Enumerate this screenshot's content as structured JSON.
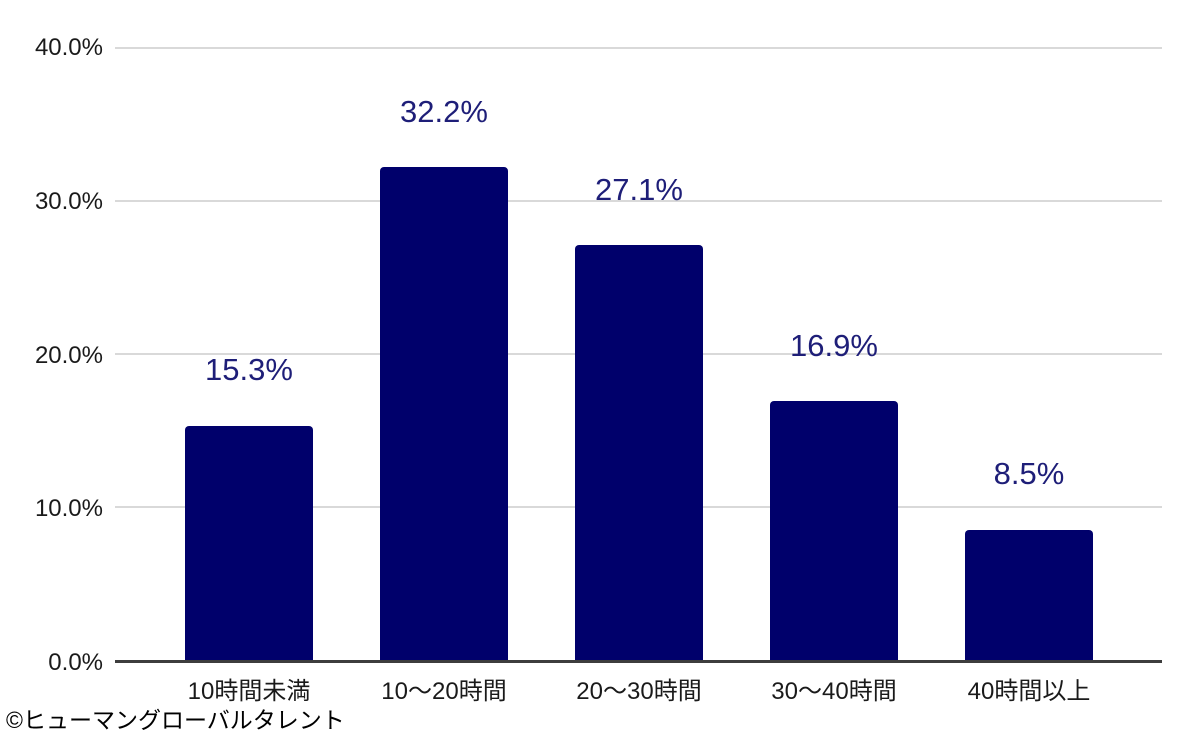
{
  "chart_data": {
    "type": "bar",
    "title": "",
    "xlabel": "",
    "ylabel": "",
    "categories": [
      "10時間未満",
      "10〜20時間",
      "20〜30時間",
      "30〜40時間",
      "40時間以上"
    ],
    "values": [
      15.3,
      32.2,
      27.1,
      16.9,
      8.5
    ],
    "data_labels": [
      "15.3%",
      "32.2%",
      "27.1%",
      "16.9%",
      "8.5%"
    ],
    "ylim": [
      0,
      40
    ],
    "y_ticks": [
      {
        "value": 40,
        "label": "40.0%"
      },
      {
        "value": 30,
        "label": "30.0%"
      },
      {
        "value": 20,
        "label": "20.0%"
      },
      {
        "value": 10,
        "label": "10.0%"
      },
      {
        "value": 0,
        "label": "0.0%"
      }
    ],
    "grid": true,
    "legend": false,
    "colors": {
      "bar": "#00006B",
      "data_label": "#1E1E78",
      "axis_text": "#1A1A1A",
      "gridline": "#D9D9D9",
      "baseline": "#3D3D3D"
    }
  },
  "footer": {
    "copyright": "©ヒューマングローバルタレント"
  }
}
